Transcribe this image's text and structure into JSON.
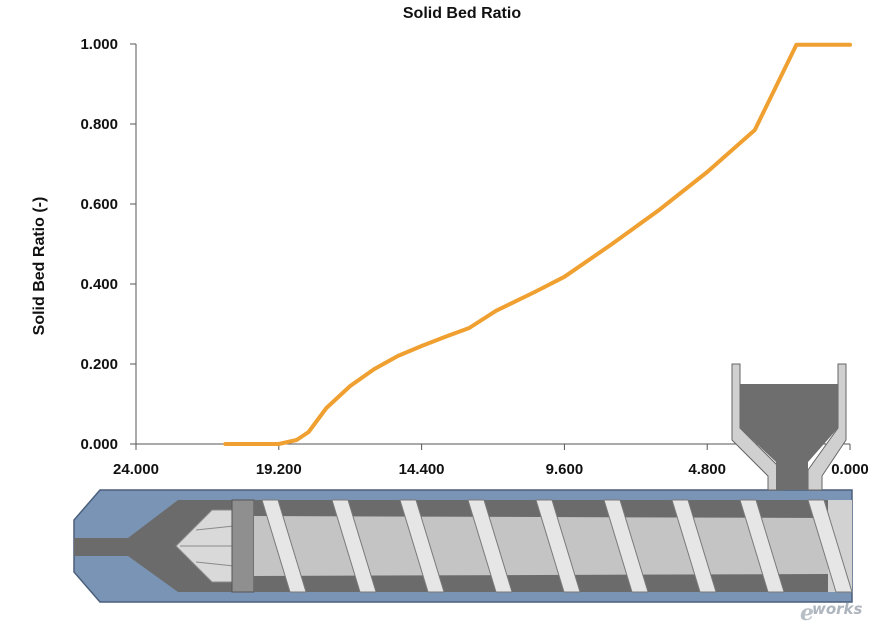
{
  "chart_data": {
    "type": "line",
    "title": "Solid Bed Ratio",
    "ylabel": "Solid Bed Ratio (-)",
    "xlabel": "",
    "x_reversed": true,
    "xlim": [
      24.0,
      0.0
    ],
    "ylim": [
      0.0,
      1.0
    ],
    "x_ticks": [
      24.0,
      19.2,
      14.4,
      9.6,
      4.8,
      0.0
    ],
    "x_tick_labels": [
      "24.000",
      "19.200",
      "14.400",
      "9.600",
      "4.800",
      "0.000"
    ],
    "y_ticks": [
      0.0,
      0.2,
      0.4,
      0.6,
      0.8,
      1.0
    ],
    "y_tick_labels": [
      "0.000",
      "0.200",
      "0.400",
      "0.600",
      "0.800",
      "1.000"
    ],
    "grid": false,
    "series": [
      {
        "color": "#f0a030",
        "x": [
          21.0,
          20.0,
          19.2,
          18.6,
          18.2,
          17.6,
          16.8,
          16.0,
          15.2,
          14.4,
          13.6,
          12.8,
          11.9,
          10.6,
          9.6,
          8.0,
          6.4,
          4.8,
          3.2,
          1.8,
          0.0
        ],
        "y": [
          0.0,
          0.0,
          0.0,
          0.01,
          0.03,
          0.09,
          0.145,
          0.187,
          0.22,
          0.245,
          0.268,
          0.29,
          0.333,
          0.38,
          0.418,
          0.5,
          0.586,
          0.68,
          0.785,
          0.998,
          0.998
        ]
      }
    ]
  },
  "watermark": {
    "e": "e",
    "rest": "works"
  },
  "colors": {
    "line": "#f0a030",
    "barrel": "#7a94b5",
    "barrel_edge": "#4a5f7d",
    "screw_dark": "#6b6b6b",
    "screw_light": "#d2d2d2",
    "hopper_fill": "#6e6e6e",
    "hopper_wall": "#d0d0d0"
  }
}
